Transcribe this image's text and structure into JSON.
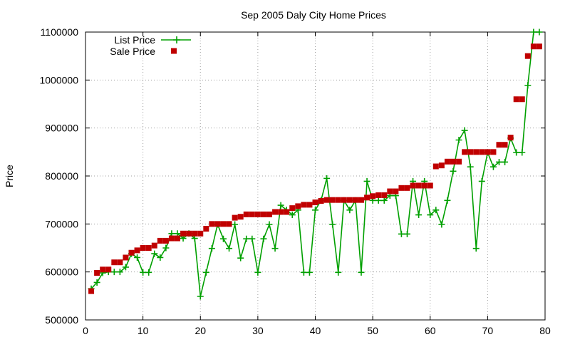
{
  "chart_data": {
    "type": "line",
    "title": "Sep 2005 Daly City Home Prices",
    "xlabel": "",
    "ylabel": "Price",
    "xlim": [
      0,
      80
    ],
    "ylim": [
      500000,
      1100000
    ],
    "xticks": [
      0,
      10,
      20,
      30,
      40,
      50,
      60,
      70,
      80
    ],
    "yticks": [
      500000,
      600000,
      700000,
      800000,
      900000,
      1000000,
      1100000
    ],
    "grid": true,
    "legend_position": "top-left",
    "series": [
      {
        "name": "List Price",
        "style": "line-plus",
        "color": "#00a000",
        "points": [
          [
            1,
            565000
          ],
          [
            2,
            578000
          ],
          [
            3,
            598000
          ],
          [
            4,
            600000
          ],
          [
            5,
            600000
          ],
          [
            6,
            600000
          ],
          [
            7,
            610000
          ],
          [
            8,
            638000
          ],
          [
            9,
            630000
          ],
          [
            10,
            599000
          ],
          [
            11,
            599000
          ],
          [
            12,
            638000
          ],
          [
            13,
            630000
          ],
          [
            14,
            650000
          ],
          [
            15,
            680000
          ],
          [
            16,
            680000
          ],
          [
            17,
            670000
          ],
          [
            18,
            680000
          ],
          [
            19,
            670000
          ],
          [
            20,
            549000
          ],
          [
            21,
            599000
          ],
          [
            22,
            649000
          ],
          [
            23,
            699000
          ],
          [
            24,
            669000
          ],
          [
            25,
            649000
          ],
          [
            26,
            699000
          ],
          [
            27,
            629000
          ],
          [
            28,
            669000
          ],
          [
            29,
            669000
          ],
          [
            30,
            599000
          ],
          [
            31,
            669000
          ],
          [
            32,
            699000
          ],
          [
            33,
            649000
          ],
          [
            34,
            739000
          ],
          [
            35,
            729000
          ],
          [
            36,
            719000
          ],
          [
            37,
            729000
          ],
          [
            38,
            599000
          ],
          [
            39,
            599000
          ],
          [
            40,
            729000
          ],
          [
            41,
            749000
          ],
          [
            42,
            795000
          ],
          [
            43,
            699000
          ],
          [
            44,
            599000
          ],
          [
            45,
            749000
          ],
          [
            46,
            729000
          ],
          [
            47,
            749000
          ],
          [
            48,
            599000
          ],
          [
            49,
            789000
          ],
          [
            50,
            749000
          ],
          [
            51,
            749000
          ],
          [
            52,
            749000
          ],
          [
            53,
            759000
          ],
          [
            54,
            759000
          ],
          [
            55,
            679000
          ],
          [
            56,
            679000
          ],
          [
            57,
            789000
          ],
          [
            58,
            719000
          ],
          [
            59,
            789000
          ],
          [
            60,
            719000
          ],
          [
            61,
            729000
          ],
          [
            62,
            699000
          ],
          [
            63,
            749000
          ],
          [
            64,
            810000
          ],
          [
            65,
            875000
          ],
          [
            66,
            895000
          ],
          [
            67,
            819000
          ],
          [
            68,
            649000
          ],
          [
            69,
            789000
          ],
          [
            70,
            849000
          ],
          [
            71,
            819000
          ],
          [
            72,
            829000
          ],
          [
            73,
            829000
          ],
          [
            74,
            879000
          ],
          [
            75,
            849000
          ],
          [
            76,
            849000
          ],
          [
            77,
            989000
          ],
          [
            78,
            1100000
          ],
          [
            79,
            1100000
          ]
        ]
      },
      {
        "name": "Sale Price",
        "style": "points-square",
        "color": "#c00000",
        "points": [
          [
            1,
            560000
          ],
          [
            2,
            598000
          ],
          [
            3,
            605000
          ],
          [
            4,
            605000
          ],
          [
            5,
            620000
          ],
          [
            6,
            620000
          ],
          [
            7,
            630000
          ],
          [
            8,
            640000
          ],
          [
            9,
            645000
          ],
          [
            10,
            650000
          ],
          [
            11,
            650000
          ],
          [
            12,
            655000
          ],
          [
            13,
            665000
          ],
          [
            14,
            665000
          ],
          [
            15,
            670000
          ],
          [
            16,
            670000
          ],
          [
            17,
            680000
          ],
          [
            18,
            680000
          ],
          [
            19,
            680000
          ],
          [
            20,
            680000
          ],
          [
            21,
            690000
          ],
          [
            22,
            700000
          ],
          [
            23,
            700000
          ],
          [
            24,
            700000
          ],
          [
            25,
            700000
          ],
          [
            26,
            713000
          ],
          [
            27,
            715000
          ],
          [
            28,
            720000
          ],
          [
            29,
            720000
          ],
          [
            30,
            720000
          ],
          [
            31,
            720000
          ],
          [
            32,
            720000
          ],
          [
            33,
            725000
          ],
          [
            34,
            725000
          ],
          [
            35,
            725000
          ],
          [
            36,
            733000
          ],
          [
            37,
            737000
          ],
          [
            38,
            740000
          ],
          [
            39,
            740000
          ],
          [
            40,
            745000
          ],
          [
            41,
            748000
          ],
          [
            42,
            750000
          ],
          [
            43,
            750000
          ],
          [
            44,
            750000
          ],
          [
            45,
            750000
          ],
          [
            46,
            750000
          ],
          [
            47,
            750000
          ],
          [
            48,
            750000
          ],
          [
            49,
            755000
          ],
          [
            50,
            758000
          ],
          [
            51,
            760000
          ],
          [
            52,
            760000
          ],
          [
            53,
            768000
          ],
          [
            54,
            768000
          ],
          [
            55,
            775000
          ],
          [
            56,
            775000
          ],
          [
            57,
            780000
          ],
          [
            58,
            780000
          ],
          [
            59,
            780000
          ],
          [
            60,
            780000
          ],
          [
            61,
            820000
          ],
          [
            62,
            822000
          ],
          [
            63,
            830000
          ],
          [
            64,
            830000
          ],
          [
            65,
            830000
          ],
          [
            66,
            850000
          ],
          [
            67,
            850000
          ],
          [
            68,
            850000
          ],
          [
            69,
            850000
          ],
          [
            70,
            850000
          ],
          [
            71,
            850000
          ],
          [
            72,
            865000
          ],
          [
            73,
            865000
          ],
          [
            74,
            880000
          ],
          [
            75,
            960000
          ],
          [
            76,
            960000
          ],
          [
            77,
            1050000
          ],
          [
            78,
            1070000
          ],
          [
            79,
            1070000
          ]
        ]
      }
    ]
  }
}
